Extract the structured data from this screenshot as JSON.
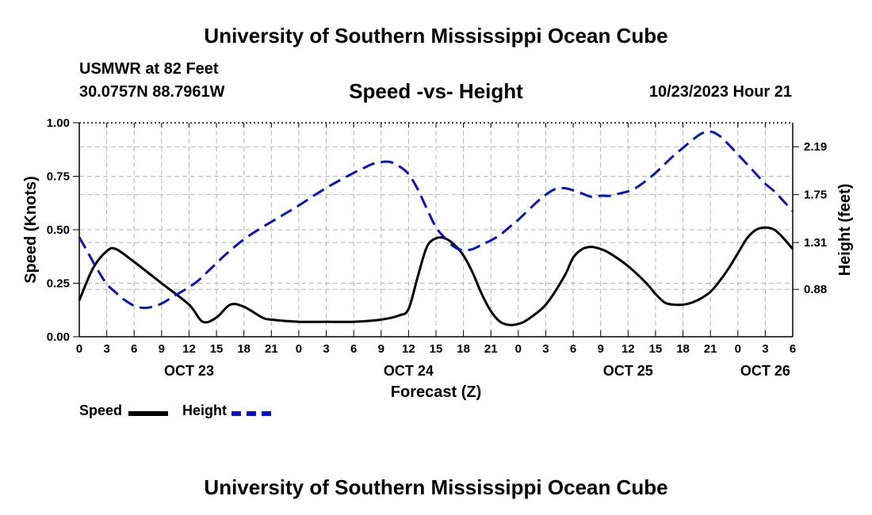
{
  "page": {
    "top_title": "University of Southern Mississippi Ocean Cube",
    "bottom_title": "University of Southern Mississippi Ocean Cube",
    "station": "USMWR at 82 Feet",
    "coords": "30.0757N  88.7961W",
    "timestamp": "10/23/2023 Hour 21"
  },
  "legend": {
    "speed": "Speed",
    "height": "Height"
  },
  "colors": {
    "speed": "#000000",
    "height": "#0a12c8",
    "grid": "#b4b4b4"
  },
  "chart_data": {
    "type": "line",
    "title": "Speed -vs- Height",
    "xlabel": "Forecast (Z)",
    "ylabel": "Speed (Knots)",
    "y2label": "Height (feet)",
    "x_unit": "hours since Oct 23 00Z",
    "xlim": [
      0,
      78
    ],
    "ylim": [
      0,
      1
    ],
    "y2lim": [
      0.445,
      2.41
    ],
    "x_ticks": [
      {
        "x": 0,
        "label": "0"
      },
      {
        "x": 3,
        "label": "3"
      },
      {
        "x": 6,
        "label": "6"
      },
      {
        "x": 9,
        "label": "9"
      },
      {
        "x": 12,
        "label": "12"
      },
      {
        "x": 15,
        "label": "15"
      },
      {
        "x": 18,
        "label": "18"
      },
      {
        "x": 21,
        "label": "21"
      },
      {
        "x": 24,
        "label": "0"
      },
      {
        "x": 27,
        "label": "3"
      },
      {
        "x": 30,
        "label": "6"
      },
      {
        "x": 33,
        "label": "9"
      },
      {
        "x": 36,
        "label": "12"
      },
      {
        "x": 39,
        "label": "15"
      },
      {
        "x": 42,
        "label": "18"
      },
      {
        "x": 45,
        "label": "21"
      },
      {
        "x": 48,
        "label": "0"
      },
      {
        "x": 51,
        "label": "3"
      },
      {
        "x": 54,
        "label": "6"
      },
      {
        "x": 57,
        "label": "9"
      },
      {
        "x": 60,
        "label": "12"
      },
      {
        "x": 63,
        "label": "15"
      },
      {
        "x": 66,
        "label": "18"
      },
      {
        "x": 69,
        "label": "21"
      },
      {
        "x": 72,
        "label": "0"
      },
      {
        "x": 75,
        "label": "3"
      },
      {
        "x": 78,
        "label": "6"
      }
    ],
    "date_labels": [
      {
        "x": 12,
        "label": "OCT 23"
      },
      {
        "x": 36,
        "label": "OCT 24"
      },
      {
        "x": 60,
        "label": "OCT 25"
      },
      {
        "x": 75,
        "label": "OCT 26"
      }
    ],
    "y_ticks": [
      {
        "v": 0,
        "label": "0.00"
      },
      {
        "v": 0.25,
        "label": "0.25"
      },
      {
        "v": 0.5,
        "label": "0.50"
      },
      {
        "v": 0.75,
        "label": "0.75"
      },
      {
        "v": 1,
        "label": "1.00"
      }
    ],
    "y2_ticks": [
      {
        "v": 0.88,
        "label": "0.88"
      },
      {
        "v": 1.31,
        "label": "1.31"
      },
      {
        "v": 1.75,
        "label": "1.75"
      },
      {
        "v": 2.19,
        "label": "2.19"
      }
    ],
    "series": [
      {
        "name": "Speed",
        "axis": "left",
        "x": [
          0,
          1.5,
          3,
          4,
          6,
          9,
          12,
          13.5,
          15,
          16.5,
          18,
          20,
          21,
          24,
          27,
          30,
          33,
          35,
          36,
          37,
          38,
          39,
          40,
          41,
          42,
          43,
          44,
          45,
          46,
          47,
          48,
          49,
          51,
          53,
          54,
          55,
          56,
          57,
          58,
          60,
          62,
          63,
          64,
          65,
          66,
          67,
          68,
          69,
          70,
          71,
          72,
          73,
          74,
          75,
          76,
          77,
          78
        ],
        "values": [
          0.17,
          0.32,
          0.4,
          0.41,
          0.35,
          0.25,
          0.15,
          0.07,
          0.09,
          0.15,
          0.14,
          0.09,
          0.08,
          0.07,
          0.07,
          0.07,
          0.08,
          0.1,
          0.13,
          0.28,
          0.42,
          0.46,
          0.46,
          0.43,
          0.38,
          0.3,
          0.2,
          0.12,
          0.07,
          0.055,
          0.06,
          0.08,
          0.15,
          0.28,
          0.37,
          0.41,
          0.42,
          0.41,
          0.39,
          0.33,
          0.25,
          0.2,
          0.16,
          0.15,
          0.15,
          0.16,
          0.18,
          0.21,
          0.26,
          0.32,
          0.39,
          0.46,
          0.5,
          0.51,
          0.5,
          0.46,
          0.41
        ]
      },
      {
        "name": "Height",
        "axis": "right",
        "x": [
          0,
          1,
          2,
          3,
          4,
          5,
          6,
          7,
          8,
          9,
          10,
          11,
          12,
          13,
          14,
          15,
          16,
          18,
          20,
          22,
          24,
          26,
          28,
          30,
          31,
          32,
          33,
          34,
          35,
          36,
          37,
          38,
          39,
          40,
          41,
          42,
          43,
          44,
          45,
          46,
          47,
          48,
          50,
          51,
          52,
          53,
          54,
          55,
          56,
          57,
          58,
          59,
          60,
          61,
          62,
          63,
          64,
          65,
          66,
          67,
          68,
          69,
          70,
          71,
          72,
          73,
          74,
          75,
          76,
          77,
          78
        ],
        "values": [
          1.36,
          1.21,
          1.06,
          0.93,
          0.85,
          0.78,
          0.73,
          0.71,
          0.72,
          0.75,
          0.8,
          0.85,
          0.9,
          0.96,
          1.04,
          1.12,
          1.2,
          1.34,
          1.45,
          1.55,
          1.65,
          1.76,
          1.86,
          1.95,
          1.99,
          2.03,
          2.05,
          2.05,
          2.01,
          1.94,
          1.8,
          1.62,
          1.45,
          1.35,
          1.27,
          1.24,
          1.25,
          1.29,
          1.33,
          1.38,
          1.45,
          1.52,
          1.68,
          1.75,
          1.8,
          1.81,
          1.79,
          1.76,
          1.73,
          1.74,
          1.74,
          1.76,
          1.78,
          1.82,
          1.88,
          1.95,
          2.03,
          2.11,
          2.18,
          2.25,
          2.31,
          2.33,
          2.29,
          2.21,
          2.12,
          2.03,
          1.94,
          1.85,
          1.78,
          1.69,
          1.6
        ]
      }
    ]
  }
}
